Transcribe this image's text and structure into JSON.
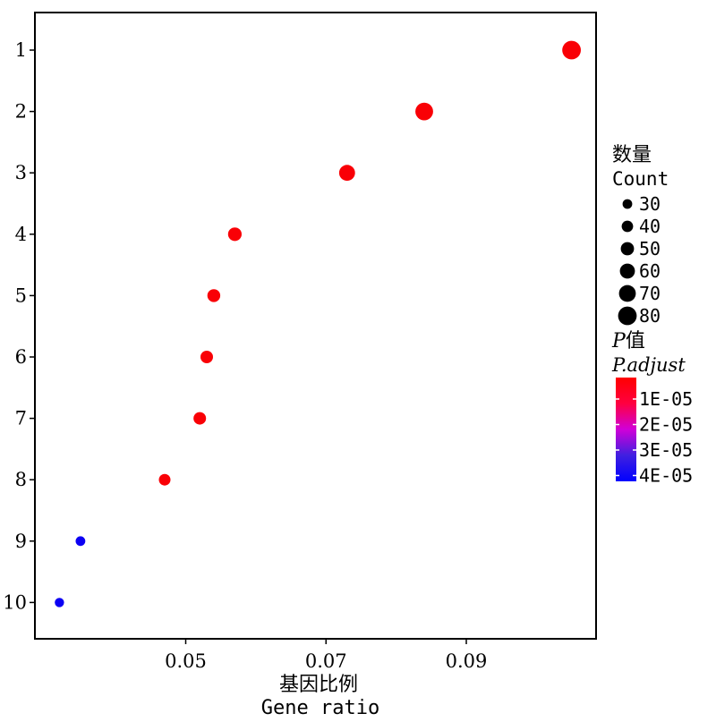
{
  "chart_data": {
    "type": "scatter",
    "x": [
      0.105,
      0.084,
      0.073,
      0.057,
      0.054,
      0.053,
      0.052,
      0.047,
      0.035,
      0.032
    ],
    "categories": [
      "1",
      "2",
      "3",
      "4",
      "5",
      "6",
      "7",
      "8",
      "9",
      "10"
    ],
    "count": [
      80,
      75,
      65,
      52,
      48,
      46,
      46,
      41,
      30,
      28
    ],
    "p_adjust": [
      1e-06,
      1e-06,
      1e-06,
      1e-06,
      1e-06,
      1e-06,
      1e-06,
      1e-06,
      4e-05,
      4e-05
    ],
    "xticks": [
      "0.05",
      "0.07",
      "0.09"
    ],
    "xtick_values": [
      0.05,
      0.07,
      0.09
    ],
    "xlim": [
      0.0285,
      0.1085
    ],
    "xlabel_cn": "基因比例",
    "xlabel_en": "Gene ratio",
    "size_legend": {
      "title_cn": "数量",
      "title_en": "Count",
      "entries": [
        "30",
        "40",
        "50",
        "60",
        "70",
        "80"
      ],
      "values": [
        30,
        40,
        50,
        60,
        70,
        80
      ]
    },
    "color_legend": {
      "title_p": "P",
      "title_cn": "值",
      "title_en": "P.adjust",
      "labels": [
        "1E-05",
        "2E-05",
        "3E-05",
        "4E-05"
      ],
      "values": [
        1e-05,
        2e-05,
        3e-05,
        4e-05
      ],
      "low_color": "#ff0000",
      "high_color": "#0000ff",
      "domain": [
        0,
        4.2e-05
      ]
    }
  }
}
